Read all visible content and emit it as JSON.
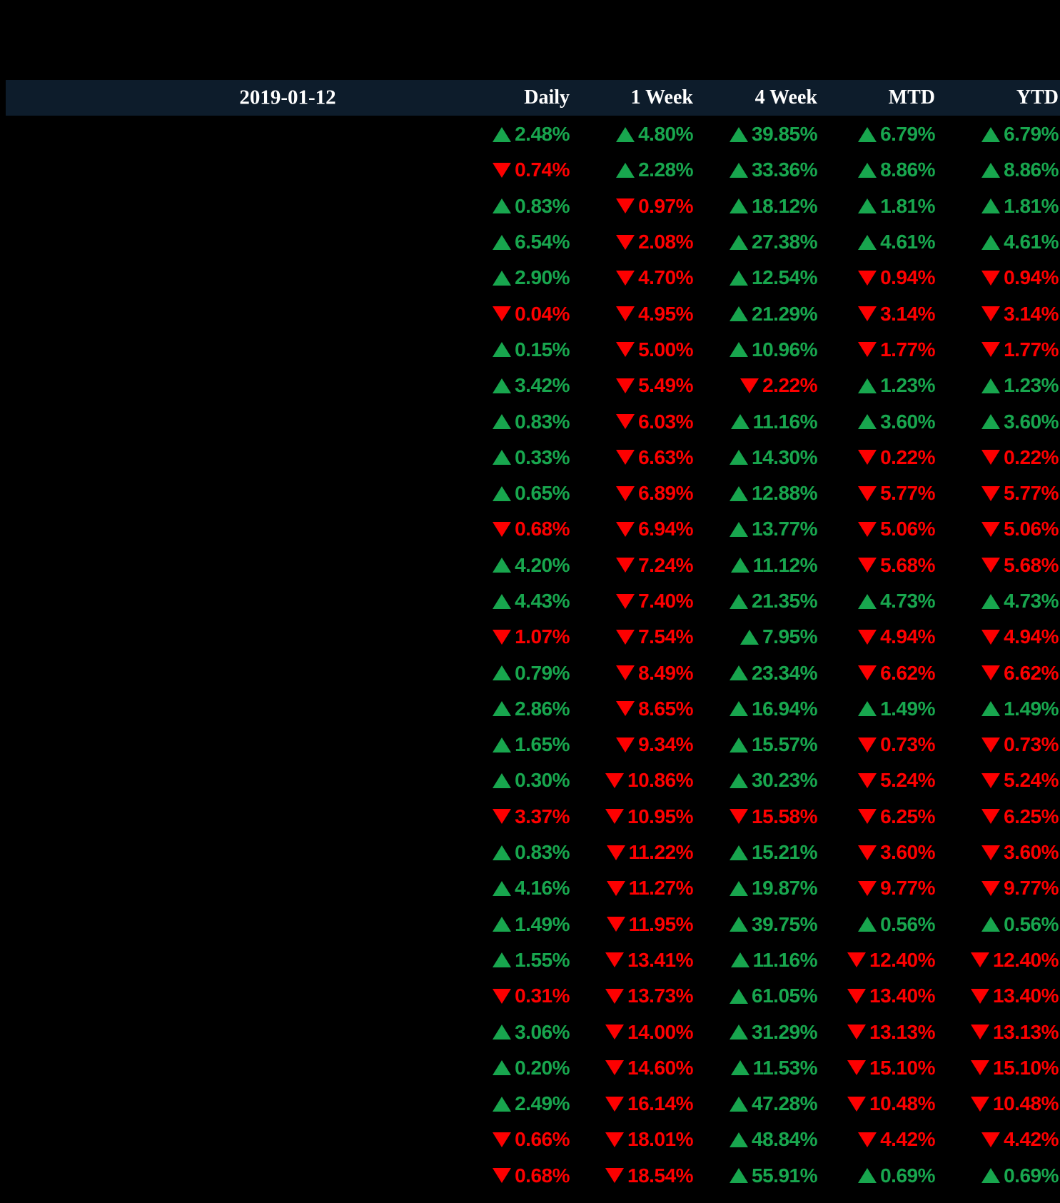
{
  "header": {
    "date": "2019-01-12",
    "columns": [
      "Daily",
      "1 Week",
      "4 Week",
      "MTD",
      "YTD"
    ]
  },
  "colors": {
    "up_green": "#18A64E",
    "down_red": "#FD0000",
    "header_background": "#0D1C2B",
    "header_text": "#FFFFFF",
    "page_background": "#000000"
  },
  "icons": {
    "up": "up-triangle-icon",
    "down": "down-triangle-icon"
  },
  "table": {
    "column_keys": [
      "daily",
      "1week",
      "4week",
      "mtd",
      "ytd"
    ],
    "rows": [
      [
        {
          "dir": "up",
          "value": "2.48%"
        },
        {
          "dir": "up",
          "value": "4.80%"
        },
        {
          "dir": "up",
          "value": "39.85%"
        },
        {
          "dir": "up",
          "value": "6.79%"
        },
        {
          "dir": "up",
          "value": "6.79%"
        }
      ],
      [
        {
          "dir": "down",
          "value": "0.74%"
        },
        {
          "dir": "up",
          "value": "2.28%"
        },
        {
          "dir": "up",
          "value": "33.36%"
        },
        {
          "dir": "up",
          "value": "8.86%"
        },
        {
          "dir": "up",
          "value": "8.86%"
        }
      ],
      [
        {
          "dir": "up",
          "value": "0.83%"
        },
        {
          "dir": "down",
          "value": "0.97%"
        },
        {
          "dir": "up",
          "value": "18.12%"
        },
        {
          "dir": "up",
          "value": "1.81%"
        },
        {
          "dir": "up",
          "value": "1.81%"
        }
      ],
      [
        {
          "dir": "up",
          "value": "6.54%"
        },
        {
          "dir": "down",
          "value": "2.08%"
        },
        {
          "dir": "up",
          "value": "27.38%"
        },
        {
          "dir": "up",
          "value": "4.61%"
        },
        {
          "dir": "up",
          "value": "4.61%"
        }
      ],
      [
        {
          "dir": "up",
          "value": "2.90%"
        },
        {
          "dir": "down",
          "value": "4.70%"
        },
        {
          "dir": "up",
          "value": "12.54%"
        },
        {
          "dir": "down",
          "value": "0.94%"
        },
        {
          "dir": "down",
          "value": "0.94%"
        }
      ],
      [
        {
          "dir": "down",
          "value": "0.04%"
        },
        {
          "dir": "down",
          "value": "4.95%"
        },
        {
          "dir": "up",
          "value": "21.29%"
        },
        {
          "dir": "down",
          "value": "3.14%"
        },
        {
          "dir": "down",
          "value": "3.14%"
        }
      ],
      [
        {
          "dir": "up",
          "value": "0.15%"
        },
        {
          "dir": "down",
          "value": "5.00%"
        },
        {
          "dir": "up",
          "value": "10.96%"
        },
        {
          "dir": "down",
          "value": "1.77%"
        },
        {
          "dir": "down",
          "value": "1.77%"
        }
      ],
      [
        {
          "dir": "up",
          "value": "3.42%"
        },
        {
          "dir": "down",
          "value": "5.49%"
        },
        {
          "dir": "down",
          "value": "2.22%"
        },
        {
          "dir": "up",
          "value": "1.23%"
        },
        {
          "dir": "up",
          "value": "1.23%"
        }
      ],
      [
        {
          "dir": "up",
          "value": "0.83%"
        },
        {
          "dir": "down",
          "value": "6.03%"
        },
        {
          "dir": "up",
          "value": "11.16%"
        },
        {
          "dir": "up",
          "value": "3.60%"
        },
        {
          "dir": "up",
          "value": "3.60%"
        }
      ],
      [
        {
          "dir": "up",
          "value": "0.33%"
        },
        {
          "dir": "down",
          "value": "6.63%"
        },
        {
          "dir": "up",
          "value": "14.30%"
        },
        {
          "dir": "down",
          "value": "0.22%"
        },
        {
          "dir": "down",
          "value": "0.22%"
        }
      ],
      [
        {
          "dir": "up",
          "value": "0.65%"
        },
        {
          "dir": "down",
          "value": "6.89%"
        },
        {
          "dir": "up",
          "value": "12.88%"
        },
        {
          "dir": "down",
          "value": "5.77%"
        },
        {
          "dir": "down",
          "value": "5.77%"
        }
      ],
      [
        {
          "dir": "down",
          "value": "0.68%"
        },
        {
          "dir": "down",
          "value": "6.94%"
        },
        {
          "dir": "up",
          "value": "13.77%"
        },
        {
          "dir": "down",
          "value": "5.06%"
        },
        {
          "dir": "down",
          "value": "5.06%"
        }
      ],
      [
        {
          "dir": "up",
          "value": "4.20%"
        },
        {
          "dir": "down",
          "value": "7.24%"
        },
        {
          "dir": "up",
          "value": "11.12%"
        },
        {
          "dir": "down",
          "value": "5.68%"
        },
        {
          "dir": "down",
          "value": "5.68%"
        }
      ],
      [
        {
          "dir": "up",
          "value": "4.43%"
        },
        {
          "dir": "down",
          "value": "7.40%"
        },
        {
          "dir": "up",
          "value": "21.35%"
        },
        {
          "dir": "up",
          "value": "4.73%"
        },
        {
          "dir": "up",
          "value": "4.73%"
        }
      ],
      [
        {
          "dir": "down",
          "value": "1.07%"
        },
        {
          "dir": "down",
          "value": "7.54%"
        },
        {
          "dir": "up",
          "value": "7.95%"
        },
        {
          "dir": "down",
          "value": "4.94%"
        },
        {
          "dir": "down",
          "value": "4.94%"
        }
      ],
      [
        {
          "dir": "up",
          "value": "0.79%"
        },
        {
          "dir": "down",
          "value": "8.49%"
        },
        {
          "dir": "up",
          "value": "23.34%"
        },
        {
          "dir": "down",
          "value": "6.62%"
        },
        {
          "dir": "down",
          "value": "6.62%"
        }
      ],
      [
        {
          "dir": "up",
          "value": "2.86%"
        },
        {
          "dir": "down",
          "value": "8.65%"
        },
        {
          "dir": "up",
          "value": "16.94%"
        },
        {
          "dir": "up",
          "value": "1.49%"
        },
        {
          "dir": "up",
          "value": "1.49%"
        }
      ],
      [
        {
          "dir": "up",
          "value": "1.65%"
        },
        {
          "dir": "down",
          "value": "9.34%"
        },
        {
          "dir": "up",
          "value": "15.57%"
        },
        {
          "dir": "down",
          "value": "0.73%"
        },
        {
          "dir": "down",
          "value": "0.73%"
        }
      ],
      [
        {
          "dir": "up",
          "value": "0.30%"
        },
        {
          "dir": "down",
          "value": "10.86%"
        },
        {
          "dir": "up",
          "value": "30.23%"
        },
        {
          "dir": "down",
          "value": "5.24%"
        },
        {
          "dir": "down",
          "value": "5.24%"
        }
      ],
      [
        {
          "dir": "down",
          "value": "3.37%"
        },
        {
          "dir": "down",
          "value": "10.95%"
        },
        {
          "dir": "down",
          "value": "15.58%"
        },
        {
          "dir": "down",
          "value": "6.25%"
        },
        {
          "dir": "down",
          "value": "6.25%"
        }
      ],
      [
        {
          "dir": "up",
          "value": "0.83%"
        },
        {
          "dir": "down",
          "value": "11.22%"
        },
        {
          "dir": "up",
          "value": "15.21%"
        },
        {
          "dir": "down",
          "value": "3.60%"
        },
        {
          "dir": "down",
          "value": "3.60%"
        }
      ],
      [
        {
          "dir": "up",
          "value": "4.16%"
        },
        {
          "dir": "down",
          "value": "11.27%"
        },
        {
          "dir": "up",
          "value": "19.87%"
        },
        {
          "dir": "down",
          "value": "9.77%"
        },
        {
          "dir": "down",
          "value": "9.77%"
        }
      ],
      [
        {
          "dir": "up",
          "value": "1.49%"
        },
        {
          "dir": "down",
          "value": "11.95%"
        },
        {
          "dir": "up",
          "value": "39.75%"
        },
        {
          "dir": "up",
          "value": "0.56%"
        },
        {
          "dir": "up",
          "value": "0.56%"
        }
      ],
      [
        {
          "dir": "up",
          "value": "1.55%"
        },
        {
          "dir": "down",
          "value": "13.41%"
        },
        {
          "dir": "up",
          "value": "11.16%"
        },
        {
          "dir": "down",
          "value": "12.40%"
        },
        {
          "dir": "down",
          "value": "12.40%"
        }
      ],
      [
        {
          "dir": "down",
          "value": "0.31%"
        },
        {
          "dir": "down",
          "value": "13.73%"
        },
        {
          "dir": "up",
          "value": "61.05%"
        },
        {
          "dir": "down",
          "value": "13.40%"
        },
        {
          "dir": "down",
          "value": "13.40%"
        }
      ],
      [
        {
          "dir": "up",
          "value": "3.06%"
        },
        {
          "dir": "down",
          "value": "14.00%"
        },
        {
          "dir": "up",
          "value": "31.29%"
        },
        {
          "dir": "down",
          "value": "13.13%"
        },
        {
          "dir": "down",
          "value": "13.13%"
        }
      ],
      [
        {
          "dir": "up",
          "value": "0.20%"
        },
        {
          "dir": "down",
          "value": "14.60%"
        },
        {
          "dir": "up",
          "value": "11.53%"
        },
        {
          "dir": "down",
          "value": "15.10%"
        },
        {
          "dir": "down",
          "value": "15.10%"
        }
      ],
      [
        {
          "dir": "up",
          "value": "2.49%"
        },
        {
          "dir": "down",
          "value": "16.14%"
        },
        {
          "dir": "up",
          "value": "47.28%"
        },
        {
          "dir": "down",
          "value": "10.48%"
        },
        {
          "dir": "down",
          "value": "10.48%"
        }
      ],
      [
        {
          "dir": "down",
          "value": "0.66%"
        },
        {
          "dir": "down",
          "value": "18.01%"
        },
        {
          "dir": "up",
          "value": "48.84%"
        },
        {
          "dir": "down",
          "value": "4.42%"
        },
        {
          "dir": "down",
          "value": "4.42%"
        }
      ],
      [
        {
          "dir": "down",
          "value": "0.68%"
        },
        {
          "dir": "down",
          "value": "18.54%"
        },
        {
          "dir": "up",
          "value": "55.91%"
        },
        {
          "dir": "up",
          "value": "0.69%"
        },
        {
          "dir": "up",
          "value": "0.69%"
        }
      ]
    ]
  }
}
